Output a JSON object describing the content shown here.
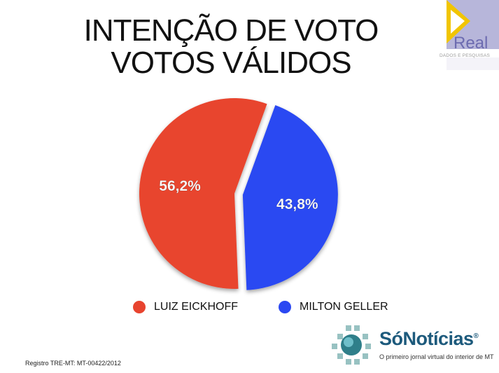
{
  "title_line1": "INTENÇÃO DE VOTO",
  "title_line2": "VOTOS VÁLIDOS",
  "logo": {
    "text": "Real",
    "subtext": "DADOS E PESQUISAS"
  },
  "chart_data": {
    "type": "pie",
    "title": "INTENÇÃO DE VOTO VOTOS VÁLIDOS",
    "slices": [
      {
        "label": "LUIZ EICKHOFF",
        "value": 56.2,
        "display": "56,2%",
        "color": "#e8442f"
      },
      {
        "label": "MILTON GELLER",
        "value": 43.8,
        "display": "43,8%",
        "color": "#2b48f2"
      }
    ],
    "legend_position": "bottom"
  },
  "footer": {
    "registro": "Registro TRE-MT: MT-00422/2012",
    "brand": "SóNotícias",
    "brand_mark": "®",
    "tagline": "O primeiro jornal virtual do interior de MT"
  }
}
